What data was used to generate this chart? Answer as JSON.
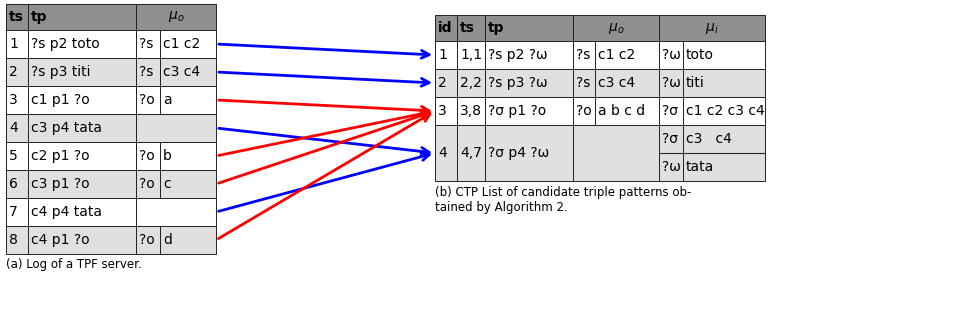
{
  "left_table": {
    "rows": [
      [
        "1",
        "?s p2 toto",
        "?s",
        "c1 c2"
      ],
      [
        "2",
        "?s p3 titi",
        "?s",
        "c3 c4"
      ],
      [
        "3",
        "c1 p1 ?o",
        "?o",
        "a"
      ],
      [
        "4",
        "c3 p4 tata",
        "",
        ""
      ],
      [
        "5",
        "c2 p1 ?o",
        "?o",
        "b"
      ],
      [
        "6",
        "c3 p1 ?o",
        "?o",
        "c"
      ],
      [
        "7",
        "c4 p4 tata",
        "",
        ""
      ],
      [
        "8",
        "c4 p1 ?o",
        "?o",
        "d"
      ]
    ]
  },
  "right_table": {
    "rows": [
      [
        "1",
        "1,1",
        "?s p2 ?ω",
        "?s",
        "c1 c2",
        "?ω",
        "toto"
      ],
      [
        "2",
        "2,2",
        "?s p3 ?ω",
        "?s",
        "c3 c4",
        "?ω",
        "titi"
      ],
      [
        "3",
        "3,8",
        "?σ p1 ?o",
        "?o",
        "a b c d",
        "?σ",
        "c1 c2 c3 c4"
      ],
      [
        "4",
        "4,7",
        "?σ p4 ?ω",
        "",
        "",
        "?σ",
        "c3   c4"
      ]
    ],
    "row4_extra": [
      "?ω",
      "tata"
    ]
  },
  "arrows": {
    "blue": [
      {
        "from_row": 0,
        "to_row": 0
      },
      {
        "from_row": 1,
        "to_row": 1
      },
      {
        "from_row": 3,
        "to_row": 3
      },
      {
        "from_row": 6,
        "to_row": 3
      }
    ],
    "red": [
      {
        "from_row": 2,
        "to_row": 2
      },
      {
        "from_row": 4,
        "to_row": 2
      },
      {
        "from_row": 5,
        "to_row": 2
      },
      {
        "from_row": 7,
        "to_row": 2
      }
    ]
  },
  "caption_a": "(a) Log of a TPF server.",
  "caption_b": "(b) CTP List of candidate triple patterns ob-\ntained by Algorithm 2.",
  "header_gray": "#909090",
  "light_gray": "#e0e0e0",
  "white": "#ffffff",
  "border_color": "#222222"
}
